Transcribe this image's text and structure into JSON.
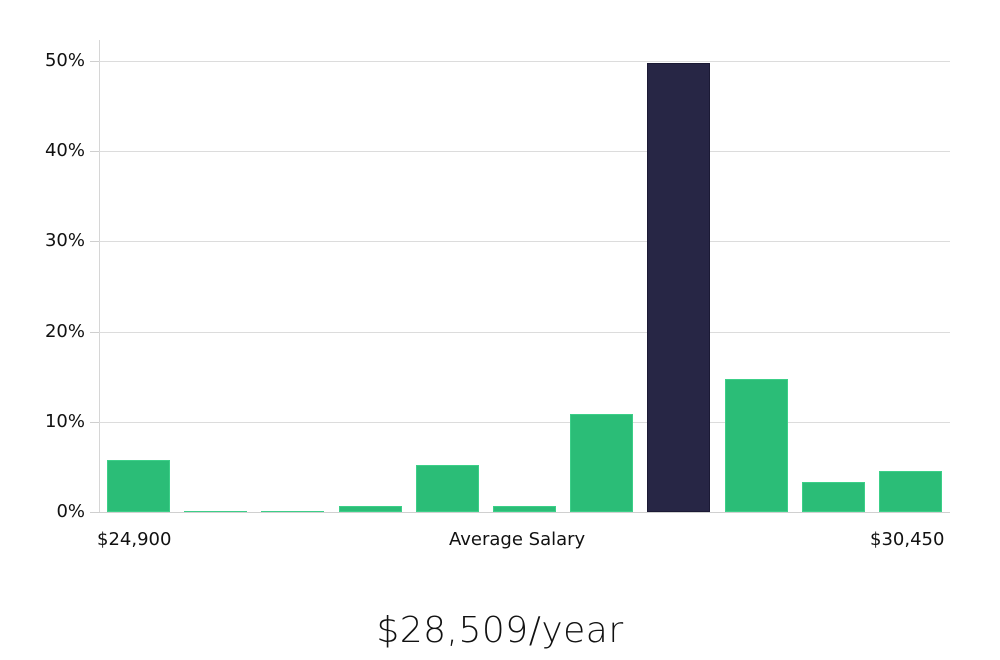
{
  "chart_data": {
    "type": "bar",
    "title": "",
    "xlabel": "Average Salary",
    "ylabel": "",
    "x_range_labels": {
      "min": "$24,900",
      "max": "$30,450"
    },
    "yticks": [
      "0%",
      "10%",
      "20%",
      "30%",
      "40%",
      "50%"
    ],
    "ylim": [
      0,
      52
    ],
    "grid": true,
    "categories": [
      "1",
      "2",
      "3",
      "4",
      "5",
      "6",
      "7",
      "8",
      "9",
      "10",
      "11"
    ],
    "values": [
      5.8,
      0.1,
      0.1,
      0.7,
      5.2,
      0.7,
      10.9,
      49.8,
      14.7,
      3.3,
      4.5
    ],
    "highlight_index": 7,
    "colors": {
      "bar": "#2bbd77",
      "highlight": "#272645",
      "grid": "#dcdcdc"
    },
    "summary": "$28,509/year"
  },
  "labels": {
    "x_min": "$24,900",
    "x_center": "Average Salary",
    "x_max": "$30,450",
    "summary": "$28,509/year"
  }
}
